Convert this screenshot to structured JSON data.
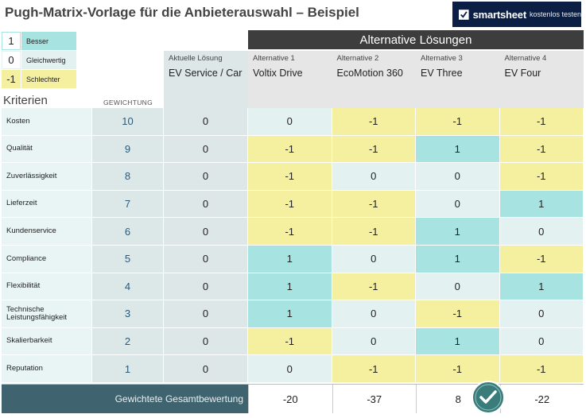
{
  "title": "Pugh-Matrix-Vorlage für die Anbieterauswahl – Beispiel",
  "brand": {
    "name": "smartsheet",
    "cta": "kostenlos testen"
  },
  "colors": {
    "better": "#a6e3e1",
    "equal": "#e3f1f1",
    "worse": "#f4f0a0",
    "header_dark": "#3d3d3d",
    "footer_dark": "#3f6470",
    "brand_bg": "#0b1f44",
    "check": "#3a7c7a"
  },
  "legend": [
    {
      "value": "1",
      "label": "Besser",
      "key": "better"
    },
    {
      "value": "0",
      "label": "Gleichwertig",
      "key": "equal"
    },
    {
      "value": "-1",
      "label": "Schlechter",
      "key": "worse"
    }
  ],
  "alt_header": "Alternative Lösungen",
  "current": {
    "sub": "Aktuelle Lösung",
    "name": "EV Service / Car"
  },
  "alternatives": [
    {
      "sub": "Alternative 1",
      "name": "Voltix Drive"
    },
    {
      "sub": "Alternative 2",
      "name": "EcoMotion 360"
    },
    {
      "sub": "Alternative 3",
      "name": "EV Three"
    },
    {
      "sub": "Alternative 4",
      "name": "EV Four"
    }
  ],
  "criteria_label": "Kriterien",
  "weight_label": "GEWICHTUNG",
  "rows": [
    {
      "criterion": "Kosten",
      "weight": "10",
      "current": "0",
      "scores": [
        "0",
        "-1",
        "-1",
        "-1"
      ]
    },
    {
      "criterion": "Qualität",
      "weight": "9",
      "current": "0",
      "scores": [
        "-1",
        "-1",
        "1",
        "-1"
      ]
    },
    {
      "criterion": "Zuverlässigkeit",
      "weight": "8",
      "current": "0",
      "scores": [
        "-1",
        "0",
        "0",
        "-1"
      ]
    },
    {
      "criterion": "Lieferzeit",
      "weight": "7",
      "current": "0",
      "scores": [
        "-1",
        "-1",
        "0",
        "1"
      ]
    },
    {
      "criterion": "Kundenservice",
      "weight": "6",
      "current": "0",
      "scores": [
        "-1",
        "-1",
        "1",
        "0"
      ]
    },
    {
      "criterion": "Compliance",
      "weight": "5",
      "current": "0",
      "scores": [
        "1",
        "0",
        "1",
        "-1"
      ]
    },
    {
      "criterion": "Flexibilität",
      "weight": "4",
      "current": "0",
      "scores": [
        "1",
        "-1",
        "0",
        "1"
      ]
    },
    {
      "criterion": "Technische Leistungsfähigkeit",
      "weight": "3",
      "current": "0",
      "scores": [
        "1",
        "0",
        "-1",
        "0"
      ]
    },
    {
      "criterion": "Skalierbarkeit",
      "weight": "2",
      "current": "0",
      "scores": [
        "-1",
        "0",
        "1",
        "0"
      ]
    },
    {
      "criterion": "Reputation",
      "weight": "1",
      "current": "0",
      "scores": [
        "0",
        "-1",
        "-1",
        "-1"
      ]
    }
  ],
  "footer_label": "Gewichtete Gesamtbewertung",
  "totals": [
    "-20",
    "-37",
    "8",
    "-22"
  ]
}
